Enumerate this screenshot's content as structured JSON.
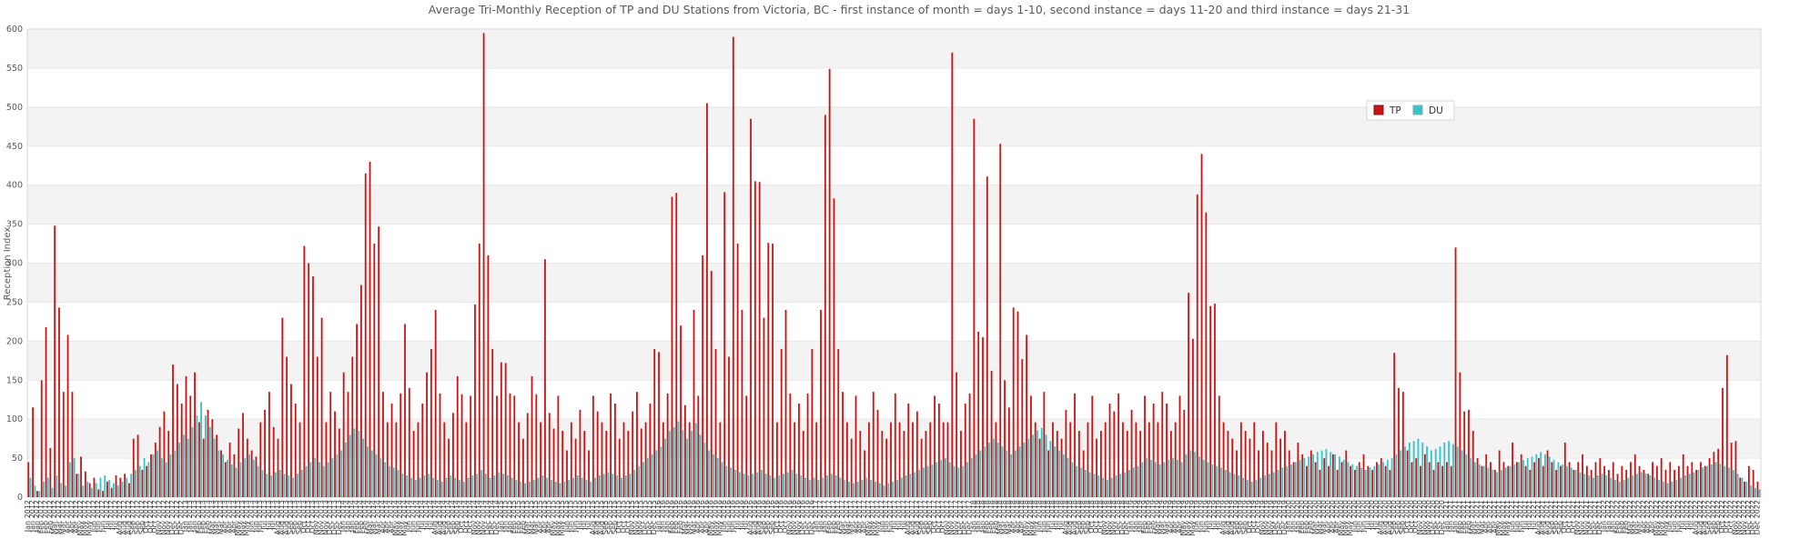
{
  "colors": {
    "tp": "#c91414",
    "tp_edge": "#801010",
    "du": "#33c3c9",
    "du_edge": "#8aabab",
    "band": "#f3f3f3",
    "gridline": "#e7e7e7",
    "plot_border": "#d8d8d8",
    "axis_text": "#5a5a5a",
    "tick_text": "#404040",
    "legend_bg": "#ffffff",
    "legend_border": "#d5d5d5"
  },
  "chart_data": {
    "type": "bar",
    "title": "Average Tri-Monthly Reception of TP and DU Stations from Victoria, BC - first instance of month = days 1-10, second instance = days 11-20 and third instance = days 21-31",
    "xlabel": "",
    "ylabel": "Reception Index",
    "ylim": [
      0,
      600
    ],
    "yticks": [
      0,
      50,
      100,
      150,
      200,
      250,
      300,
      350,
      400,
      450,
      500,
      550,
      600
    ],
    "grid": "horizontal gray/white bands every 50 units",
    "legend_position": "inside upper right",
    "x_axis": {
      "years": [
        2012,
        2013,
        2014,
        2015,
        2016,
        2017,
        2018,
        2019,
        2020,
        2021,
        2022
      ],
      "months": [
        "Jan",
        "Feb",
        "Mar",
        "Apr",
        "May",
        "Jun",
        "Jul",
        "Aug",
        "Sep",
        "Oct",
        "Nov",
        "Dec"
      ],
      "instances_per_month": 3,
      "label_format": "{month} {year}",
      "tick_rotation_deg": 90
    },
    "series": [
      {
        "name": "TP",
        "color": "#c91414",
        "values": [
          45,
          115,
          8,
          150,
          218,
          63,
          348,
          243,
          135,
          208,
          135,
          30,
          52,
          33,
          18,
          25,
          10,
          8,
          20,
          12,
          28,
          25,
          30,
          18,
          75,
          80,
          35,
          40,
          55,
          70,
          90,
          110,
          85,
          170,
          145,
          120,
          155,
          130,
          160,
          96,
          75,
          112,
          100,
          80,
          60,
          45,
          70,
          55,
          88,
          108,
          75,
          60,
          52,
          96,
          112,
          135,
          90,
          75,
          230,
          180,
          145,
          120,
          96,
          322,
          300,
          283,
          180,
          230,
          96,
          135,
          110,
          88,
          160,
          135,
          180,
          222,
          272,
          415,
          430,
          325,
          347,
          135,
          96,
          120,
          96,
          133,
          222,
          140,
          85,
          96,
          120,
          160,
          190,
          240,
          133,
          96,
          75,
          108,
          155,
          132,
          96,
          130,
          247,
          325,
          595,
          310,
          190,
          130,
          173,
          172,
          133,
          130,
          96,
          75,
          108,
          155,
          132,
          96,
          305,
          108,
          88,
          130,
          85,
          60,
          96,
          75,
          112,
          85,
          60,
          130,
          110,
          96,
          85,
          133,
          120,
          75,
          96,
          85,
          110,
          135,
          88,
          96,
          120,
          190,
          186,
          96,
          133,
          385,
          390,
          220,
          118,
          96,
          240,
          130,
          310,
          505,
          290,
          190,
          96,
          391,
          180,
          590,
          325,
          240,
          130,
          485,
          405,
          404,
          230,
          326,
          325,
          96,
          190,
          240,
          133,
          96,
          120,
          85,
          133,
          190,
          96,
          240,
          490,
          549,
          383,
          190,
          135,
          96,
          75,
          130,
          85,
          60,
          96,
          135,
          112,
          85,
          75,
          96,
          133,
          96,
          85,
          120,
          96,
          110,
          75,
          85,
          96,
          130,
          120,
          96,
          96,
          570,
          160,
          85,
          120,
          133,
          485,
          212,
          205,
          411,
          162,
          96,
          453,
          150,
          115,
          243,
          238,
          177,
          208,
          130,
          96,
          75,
          135,
          60,
          96,
          85,
          75,
          112,
          96,
          133,
          85,
          60,
          96,
          130,
          75,
          85,
          96,
          120,
          110,
          133,
          96,
          85,
          112,
          96,
          85,
          130,
          96,
          120,
          96,
          135,
          120,
          85,
          96,
          130,
          112,
          262,
          203,
          388,
          440,
          365,
          245,
          248,
          130,
          96,
          85,
          75,
          60,
          96,
          85,
          75,
          96,
          60,
          85,
          70,
          60,
          96,
          75,
          85,
          60,
          45,
          70,
          55,
          40,
          60,
          45,
          35,
          50,
          40,
          55,
          35,
          45,
          60,
          40,
          35,
          45,
          55,
          40,
          35,
          45,
          50,
          40,
          35,
          185,
          140,
          135,
          60,
          45,
          50,
          40,
          55,
          45,
          35,
          45,
          40,
          45,
          40,
          320,
          160,
          110,
          112,
          85,
          50,
          40,
          55,
          45,
          35,
          60,
          45,
          40,
          70,
          45,
          55,
          40,
          35,
          45,
          50,
          40,
          60,
          45,
          35,
          40,
          70,
          45,
          35,
          45,
          55,
          40,
          35,
          45,
          50,
          40,
          35,
          45,
          30,
          40,
          35,
          45,
          55,
          40,
          35,
          30,
          45,
          40,
          50,
          35,
          45,
          35,
          40,
          55,
          40,
          45,
          35,
          45,
          40,
          50,
          58,
          62,
          140,
          182,
          70,
          72,
          25,
          20,
          40,
          35,
          20
        ]
      },
      {
        "name": "DU",
        "color": "#33c3c9",
        "values": [
          25,
          15,
          8,
          20,
          25,
          12,
          28,
          18,
          15,
          45,
          50,
          30,
          15,
          20,
          12,
          18,
          25,
          28,
          22,
          18,
          15,
          20,
          25,
          30,
          35,
          40,
          50,
          45,
          55,
          60,
          50,
          45,
          55,
          60,
          70,
          80,
          75,
          90,
          105,
          122,
          105,
          90,
          75,
          60,
          55,
          48,
          42,
          38,
          45,
          50,
          55,
          48,
          40,
          35,
          30,
          28,
          32,
          35,
          30,
          28,
          25,
          30,
          35,
          40,
          45,
          50,
          45,
          40,
          45,
          50,
          55,
          60,
          70,
          80,
          88,
          85,
          75,
          65,
          60,
          55,
          50,
          45,
          40,
          38,
          35,
          30,
          28,
          25,
          22,
          25,
          28,
          30,
          25,
          22,
          20,
          25,
          28,
          25,
          22,
          20,
          25,
          28,
          30,
          35,
          30,
          25,
          28,
          32,
          30,
          28,
          25,
          22,
          20,
          18,
          20,
          22,
          25,
          28,
          25,
          22,
          20,
          18,
          20,
          22,
          25,
          28,
          25,
          22,
          20,
          25,
          28,
          30,
          32,
          30,
          28,
          25,
          28,
          30,
          35,
          40,
          45,
          50,
          55,
          60,
          65,
          75,
          85,
          90,
          97,
          86,
          75,
          85,
          95,
          80,
          70,
          60,
          55,
          50,
          45,
          40,
          38,
          35,
          32,
          30,
          28,
          30,
          32,
          35,
          30,
          28,
          25,
          28,
          30,
          32,
          35,
          30,
          28,
          25,
          22,
          25,
          22,
          25,
          28,
          30,
          28,
          25,
          22,
          20,
          18,
          20,
          22,
          25,
          22,
          20,
          18,
          15,
          18,
          20,
          22,
          25,
          28,
          30,
          32,
          35,
          38,
          40,
          42,
          45,
          48,
          50,
          45,
          40,
          38,
          40,
          45,
          50,
          55,
          60,
          65,
          70,
          75,
          70,
          65,
          60,
          55,
          60,
          65,
          70,
          75,
          80,
          86,
          89,
          80,
          72,
          65,
          60,
          55,
          50,
          45,
          40,
          38,
          35,
          32,
          30,
          28,
          25,
          22,
          25,
          28,
          30,
          32,
          35,
          38,
          40,
          45,
          50,
          48,
          45,
          42,
          45,
          48,
          50,
          48,
          45,
          55,
          60,
          58,
          52,
          48,
          45,
          42,
          40,
          38,
          35,
          32,
          30,
          28,
          25,
          22,
          20,
          22,
          25,
          28,
          30,
          32,
          35,
          38,
          40,
          42,
          45,
          48,
          50,
          52,
          55,
          58,
          60,
          62,
          58,
          55,
          52,
          48,
          45,
          42,
          40,
          38,
          35,
          38,
          40,
          42,
          45,
          48,
          50,
          55,
          60,
          65,
          70,
          72,
          75,
          70,
          65,
          60,
          62,
          65,
          70,
          72,
          68,
          65,
          60,
          55,
          50,
          45,
          42,
          40,
          38,
          35,
          32,
          35,
          38,
          40,
          42,
          45,
          48,
          50,
          52,
          55,
          58,
          55,
          52,
          48,
          45,
          42,
          40,
          38,
          35,
          32,
          30,
          28,
          25,
          28,
          30,
          28,
          25,
          22,
          20,
          22,
          25,
          28,
          30,
          32,
          30,
          28,
          25,
          22,
          20,
          18,
          20,
          22,
          25,
          28,
          30,
          32,
          35,
          38,
          40,
          42,
          45,
          43,
          40,
          38,
          35,
          30,
          25,
          20,
          15,
          12,
          10
        ]
      }
    ]
  }
}
